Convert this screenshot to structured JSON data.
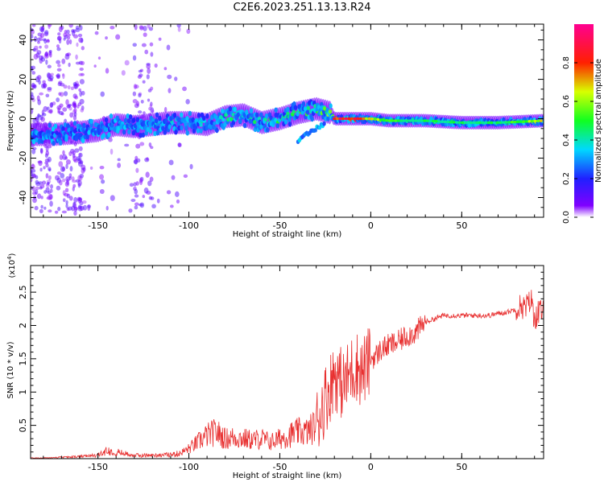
{
  "figure": {
    "title": "C2E6.2023.251.13.13.R24"
  },
  "chart_data": [
    {
      "type": "heatmap",
      "title": "C2E6.2023.251.13.13.R24",
      "xlabel": "Height of straight line (km)",
      "ylabel": "Frequency (Hz)",
      "xlim": [
        -187,
        95
      ],
      "ylim": [
        -50,
        48
      ],
      "xticks": [
        -150,
        -100,
        -50,
        0,
        50
      ],
      "yticks": [
        -40,
        -20,
        0,
        20,
        40
      ],
      "grid": false,
      "colorbar": {
        "label": "Normalized spectral amplitude",
        "range": [
          0,
          1
        ],
        "ticks": [
          0.0,
          0.2,
          0.4,
          0.6,
          0.8
        ],
        "colormap": "rainbow (violet-blue-cyan-green-yellow-red-magenta)"
      },
      "ridge": {
        "description": "main spectral line frequency (Hz) vs height (km)",
        "x": [
          -187,
          -175,
          -160,
          -150,
          -140,
          -130,
          -120,
          -110,
          -100,
          -90,
          -80,
          -70,
          -60,
          -50,
          -40,
          -30,
          -22,
          -20,
          -10,
          0,
          10,
          30,
          50,
          70,
          95
        ],
        "y": [
          -8,
          -8,
          -7,
          -6,
          -3,
          -4,
          -3,
          -2,
          -2,
          -3,
          1,
          2,
          -2,
          0,
          3,
          5,
          3,
          0,
          0,
          0,
          -1,
          -1,
          -2,
          -2,
          -1
        ],
        "peak_amplitude": [
          0.25,
          0.3,
          0.3,
          0.35,
          0.4,
          0.4,
          0.45,
          0.4,
          0.4,
          0.45,
          0.5,
          0.45,
          0.5,
          0.55,
          0.55,
          0.6,
          0.7,
          0.92,
          0.95,
          0.7,
          0.55,
          0.5,
          0.5,
          0.5,
          0.7
        ]
      },
      "branch": {
        "description": "secondary descending branch",
        "x": [
          -40,
          -35,
          -30,
          -25
        ],
        "y": [
          -12,
          -8,
          -5,
          -2
        ]
      }
    },
    {
      "type": "line",
      "xlabel": "Height of straight line (km)",
      "ylabel": "SNR (10 * v/v)",
      "y_multiplier": "(x10^4)",
      "xlim": [
        -187,
        95
      ],
      "ylim": [
        0,
        2.9
      ],
      "xticks": [
        -150,
        -100,
        -50,
        0,
        50
      ],
      "yticks": [
        0.5,
        1.0,
        1.5,
        2.0,
        2.5
      ],
      "grid": false,
      "color": "#e83030",
      "series": [
        {
          "x": [
            -187,
            -180,
            -170,
            -160,
            -150,
            -145,
            -140,
            -130,
            -120,
            -110,
            -105,
            -100,
            -95,
            -90,
            -85,
            -80,
            -75,
            -70,
            -65,
            -60,
            -55,
            -50,
            -45,
            -40,
            -35,
            -30,
            -28,
            -25,
            -22,
            -20,
            -18,
            -15,
            -12,
            -10,
            -8,
            -5,
            -2,
            0,
            3,
            6,
            10,
            15,
            20,
            25,
            30,
            35,
            40,
            45,
            50,
            55,
            60,
            65,
            70,
            75,
            80,
            83,
            85,
            88,
            90,
            92,
            95
          ],
          "y": [
            0.01,
            0.01,
            0.02,
            0.03,
            0.05,
            0.12,
            0.1,
            0.05,
            0.05,
            0.06,
            0.08,
            0.15,
            0.25,
            0.35,
            0.4,
            0.3,
            0.32,
            0.3,
            0.28,
            0.3,
            0.25,
            0.3,
            0.35,
            0.4,
            0.4,
            0.5,
            0.7,
            0.9,
            1.1,
            1.3,
            1.2,
            1.1,
            1.25,
            1.35,
            1.4,
            1.3,
            1.4,
            1.5,
            1.55,
            1.65,
            1.7,
            1.75,
            1.85,
            1.9,
            2.05,
            2.1,
            2.15,
            2.15,
            2.15,
            2.15,
            2.15,
            2.15,
            2.18,
            2.2,
            2.25,
            2.3,
            2.25,
            2.4,
            2.1,
            2.2,
            2.2
          ]
        }
      ]
    }
  ]
}
